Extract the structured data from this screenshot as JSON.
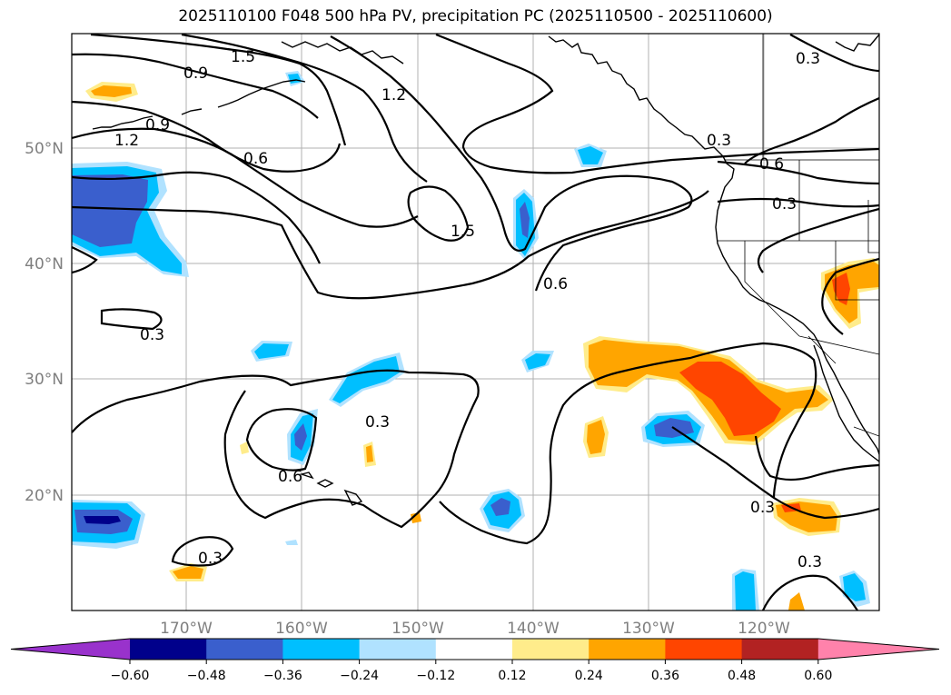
{
  "title": "2025110100 F048 500 hPa PV, precipitation PC (2025110500 - 2025110600)",
  "longitude_labels": [
    "170°W",
    "160°W",
    "150°W",
    "140°W",
    "130°W",
    "120°W"
  ],
  "latitude_labels": [
    "50°N",
    "40°N",
    "30°N",
    "20°N"
  ],
  "contour_labels": [
    "1.5",
    "0.9",
    "0.9",
    "1.2",
    "1.2",
    "0.6",
    "1.5",
    "0.6",
    "0.3",
    "0.3",
    "0.6",
    "0.3",
    "0.3",
    "0.6",
    "0.3",
    "0.3",
    "0.3",
    "0.3"
  ],
  "colorbar": {
    "ticks": [
      "−0.60",
      "−0.48",
      "−0.36",
      "−0.24",
      "−0.12",
      "0.12",
      "0.24",
      "0.36",
      "0.48",
      "0.60"
    ],
    "colors": [
      "#9932cc",
      "#00008b",
      "#3a5fcd",
      "#00bfff",
      "#b0e2ff",
      "#ffffff",
      "#ffec8b",
      "#ffa500",
      "#ff4500",
      "#b22222",
      "#ff82ab"
    ]
  }
}
